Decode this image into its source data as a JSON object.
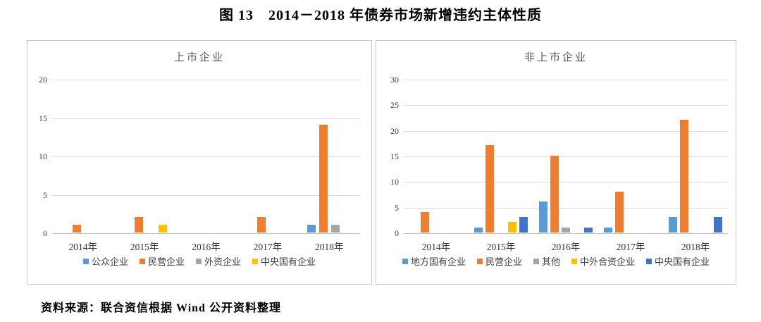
{
  "figure": {
    "title": "图 13　2014－2018 年债券市场新增违约主体性质",
    "source": "资料来源：联合资信根据 Wind 公开资料整理"
  },
  "chart_data": [
    {
      "type": "bar",
      "title": "上市企业",
      "categories": [
        "2014年",
        "2015年",
        "2016年",
        "2017年",
        "2018年"
      ],
      "series": [
        {
          "name": "公众企业",
          "color": "#5B9BD5",
          "values": [
            0,
            0,
            0,
            0,
            1
          ]
        },
        {
          "name": "民营企业",
          "color": "#ED7D31",
          "values": [
            1,
            2,
            0,
            2,
            14
          ]
        },
        {
          "name": "外资企业",
          "color": "#A5A5A5",
          "values": [
            0,
            0,
            0,
            0,
            1
          ]
        },
        {
          "name": "中央国有企业",
          "color": "#FFC000",
          "values": [
            0,
            1,
            0,
            0,
            0
          ]
        }
      ],
      "ylim": [
        0,
        20
      ],
      "ytick_step": 5,
      "grid": true,
      "legend_position": "bottom"
    },
    {
      "type": "bar",
      "title": "非上市企业",
      "categories": [
        "2014年",
        "2015年",
        "2016年",
        "2017年",
        "2018年"
      ],
      "series": [
        {
          "name": "地方国有企业",
          "color": "#5B9BD5",
          "values": [
            0,
            1,
            6,
            1,
            3
          ]
        },
        {
          "name": "民营企业",
          "color": "#ED7D31",
          "values": [
            4,
            17,
            15,
            8,
            22
          ]
        },
        {
          "name": "其他",
          "color": "#A5A5A5",
          "values": [
            0,
            0,
            1,
            0,
            0
          ]
        },
        {
          "name": "中外合资企业",
          "color": "#FFC000",
          "values": [
            0,
            2,
            0,
            0,
            0
          ]
        },
        {
          "name": "中央国有企业",
          "color": "#4472C4",
          "values": [
            0,
            3,
            1,
            0,
            3
          ]
        }
      ],
      "ylim": [
        0,
        30
      ],
      "ytick_step": 5,
      "grid": true,
      "legend_position": "bottom"
    }
  ]
}
